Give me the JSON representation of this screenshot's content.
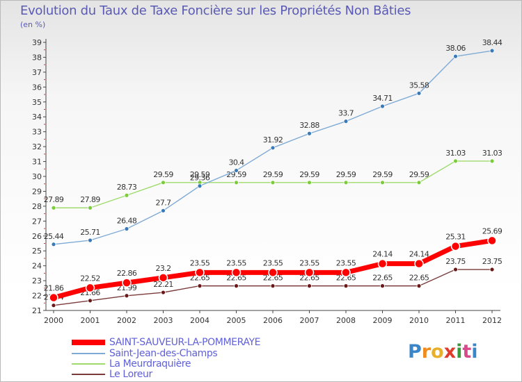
{
  "header": {
    "title": "Evolution du Taux de Taxe Foncière sur les Propriétés Non Bâties",
    "unit": "(en %)"
  },
  "legend": [
    {
      "label": "SAINT-SAUVEUR-LA-POMMERAYE",
      "color": "#ff0000"
    },
    {
      "label": "Saint-Jean-des-Champs",
      "color": "#7eaad6"
    },
    {
      "label": "La Meurdraquière",
      "color": "#9fdb6c"
    },
    {
      "label": "Le Loreur",
      "color": "#7a3a3a"
    }
  ],
  "logo": {
    "text": "Proxiti",
    "letters": [
      {
        "ch": "P",
        "color": "#3a86c8"
      },
      {
        "ch": "r",
        "color": "#f08c1e"
      },
      {
        "ch": "o",
        "color": "#e8b02a"
      },
      {
        "ch": "x",
        "color": "#e03a2a"
      },
      {
        "ch": "i",
        "color": "#3a9a3a"
      },
      {
        "ch": "t",
        "color": "#d84a8a"
      },
      {
        "ch": "i",
        "color": "#3a86c8"
      }
    ]
  },
  "chart_data": {
    "type": "line",
    "title": "Evolution du Taux de Taxe Foncière sur les Propriétés Non Bâties",
    "ylabel": "(en %)",
    "xlabel": "",
    "categories": [
      "2000",
      "2001",
      "2002",
      "2003",
      "2004",
      "2005",
      "2006",
      "2007",
      "2008",
      "2009",
      "2010",
      "2011",
      "2012"
    ],
    "ylim": [
      21,
      39
    ],
    "yticks": [
      21,
      22,
      23,
      24,
      25,
      26,
      27,
      28,
      29,
      30,
      31,
      32,
      33,
      34,
      35,
      36,
      37,
      38,
      39
    ],
    "grid": false,
    "series": [
      {
        "name": "Le Loreur",
        "color": "#7a3a3a",
        "marker": "#6a1818",
        "width": 1.4,
        "radius": 3,
        "values": [
          21.34,
          21.66,
          21.99,
          22.21,
          22.65,
          22.65,
          22.65,
          22.65,
          22.65,
          22.65,
          22.65,
          23.75,
          23.75
        ],
        "labels": [
          "21.34",
          "21.66",
          "21.99",
          "22.21",
          "22.65",
          "22.65",
          "22.65",
          "22.65",
          "22.65",
          "22.65",
          "22.65",
          "23.75",
          "23.75"
        ]
      },
      {
        "name": "La Meurdraquière",
        "color": "#9fdb6c",
        "marker": "#7acc3a",
        "width": 1.4,
        "radius": 3,
        "values": [
          27.89,
          27.89,
          28.73,
          29.59,
          29.59,
          29.59,
          29.59,
          29.59,
          29.59,
          29.59,
          29.59,
          31.03,
          31.03
        ],
        "labels": [
          "27.89",
          "27.89",
          "28.73",
          "29.59",
          "29.59",
          "29.59",
          "29.59",
          "29.59",
          "29.59",
          "29.59",
          "29.59",
          "31.03",
          "31.03"
        ]
      },
      {
        "name": "Saint-Jean-des-Champs",
        "color": "#7eaad6",
        "marker": "#3a7ab8",
        "width": 1.4,
        "radius": 3,
        "values": [
          25.44,
          25.71,
          26.48,
          27.7,
          29.36,
          30.4,
          31.92,
          32.88,
          33.7,
          34.71,
          35.58,
          38.06,
          38.44
        ],
        "labels": [
          "25.44",
          "25.71",
          "26.48",
          "27.7",
          "29.36",
          "30.4",
          "31.92",
          "32.88",
          "33.7",
          "34.71",
          "35.58",
          "38.06",
          "38.44"
        ]
      },
      {
        "name": "SAINT-SAUVEUR-LA-POMMERAYE",
        "color": "#ff0000",
        "marker": "#ff0000",
        "width": 7,
        "radius": 6,
        "values": [
          21.86,
          22.52,
          22.86,
          23.2,
          23.55,
          23.55,
          23.55,
          23.55,
          23.55,
          24.14,
          24.14,
          25.31,
          25.69
        ],
        "labels": [
          "21.86",
          "22.52",
          "22.86",
          "23.2",
          "23.55",
          "23.55",
          "23.55",
          "23.55",
          "23.55",
          "24.14",
          "24.14",
          "25.31",
          "25.69"
        ]
      }
    ]
  }
}
